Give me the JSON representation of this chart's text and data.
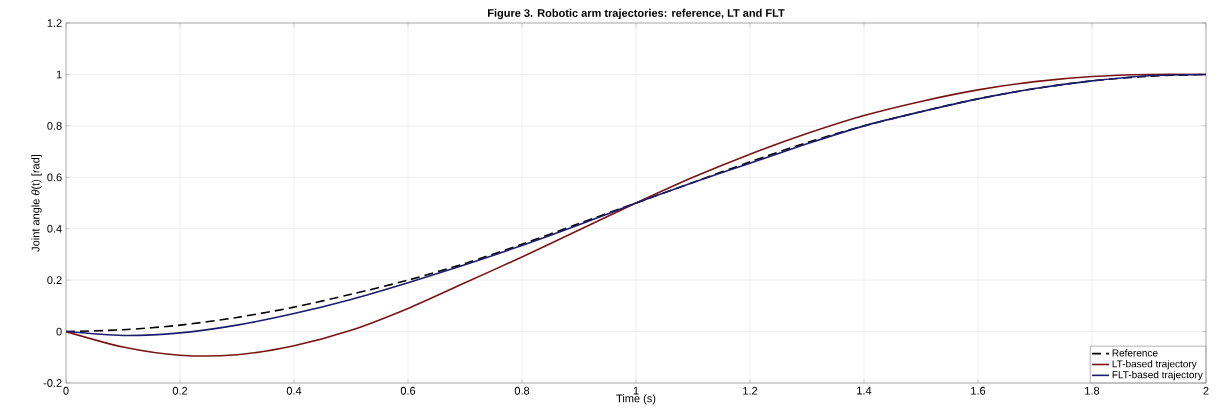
{
  "chart_data": {
    "type": "line",
    "title": "Figure 3. Robotic arm trajectories: reference, LT and FLT",
    "xlabel": "Time (s)",
    "ylabel": "Joint angle *θ*(t)  [rad]",
    "x": [
      0,
      0.1,
      0.2,
      0.3,
      0.4,
      0.5,
      0.6,
      0.7,
      0.8,
      0.9,
      1.0,
      1.1,
      1.2,
      1.3,
      1.4,
      1.5,
      1.6,
      1.7,
      1.8,
      1.9,
      2.0
    ],
    "series": [
      {
        "name": "Reference",
        "color": "#000000",
        "line_style": "dashed",
        "values": [
          0,
          0.007,
          0.025,
          0.055,
          0.095,
          0.145,
          0.2,
          0.265,
          0.34,
          0.42,
          0.5,
          0.58,
          0.66,
          0.735,
          0.8,
          0.855,
          0.905,
          0.945,
          0.975,
          0.993,
          1.0
        ]
      },
      {
        "name": "LT-based trajectory",
        "color": "#7a1414",
        "line_style": "solid",
        "values": [
          0,
          -0.06,
          -0.092,
          -0.09,
          -0.055,
          0.005,
          0.09,
          0.19,
          0.29,
          0.395,
          0.5,
          0.6,
          0.69,
          0.77,
          0.84,
          0.895,
          0.94,
          0.972,
          0.992,
          1.0,
          1.0
        ]
      },
      {
        "name": "FLT-based trajectory",
        "color": "#1c1c6e",
        "line_style": "solid",
        "values": [
          0,
          -0.015,
          -0.005,
          0.025,
          0.07,
          0.125,
          0.19,
          0.26,
          0.335,
          0.415,
          0.5,
          0.58,
          0.655,
          0.73,
          0.8,
          0.855,
          0.905,
          0.945,
          0.975,
          0.995,
          1.0
        ]
      }
    ],
    "xlim": [
      0,
      2
    ],
    "ylim": [
      -0.2,
      1.2
    ],
    "xticks": [
      0,
      0.2,
      0.4,
      0.6,
      0.8,
      1,
      1.2,
      1.4,
      1.6,
      1.8,
      2
    ],
    "yticks": [
      -0.2,
      0,
      0.2,
      0.4,
      0.6,
      0.8,
      1,
      1.2
    ],
    "grid": true,
    "legend": "bottom right"
  }
}
